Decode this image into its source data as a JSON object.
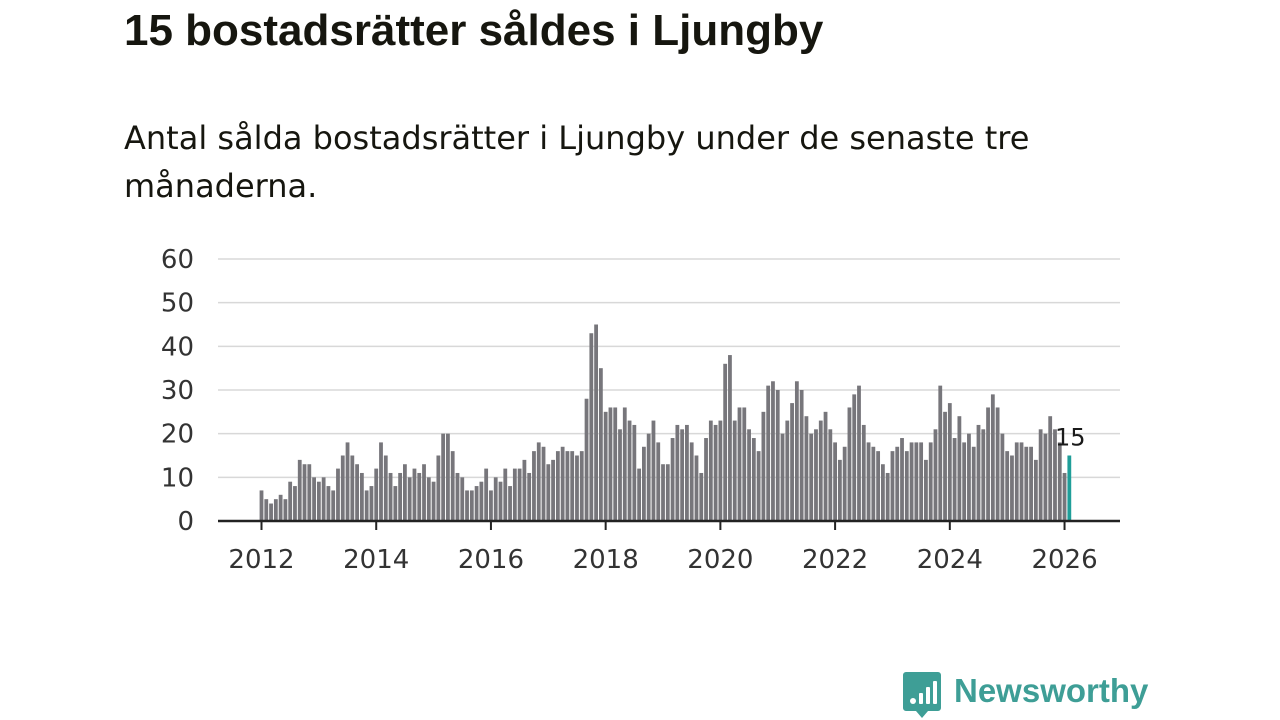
{
  "header": {
    "title": "15 bostadsrätter såldes i Ljungby",
    "subtitle": "Antal sålda bostadsrätter i Ljungby under de senaste tre månaderna."
  },
  "brand": {
    "name": "Newsworthy"
  },
  "colors": {
    "bar": "#77767b",
    "highlight": "#1f9e99",
    "grid": "#d8d8d8",
    "axis": "#222222",
    "brand": "#3e9e96"
  },
  "chart_data": {
    "type": "bar",
    "title": "15 bostadsrätter såldes i Ljungby",
    "subtitle": "Antal sålda bostadsrätter i Ljungby under de senaste tre månaderna.",
    "xlabel": "",
    "ylabel": "",
    "ylim": [
      0,
      60
    ],
    "y_ticks": [
      "0",
      "10",
      "20",
      "30",
      "40",
      "50",
      "60"
    ],
    "x_ticks": [
      "2012",
      "2014",
      "2016",
      "2018",
      "2020",
      "2022",
      "2024",
      "2026"
    ],
    "start": "2012-01",
    "grid": true,
    "annotation": {
      "label": "15",
      "category": "2026-02"
    },
    "categories": [
      "2012-01",
      "2012-02",
      "2012-03",
      "2012-04",
      "2012-05",
      "2012-06",
      "2012-07",
      "2012-08",
      "2012-09",
      "2012-10",
      "2012-11",
      "2012-12",
      "2013-01",
      "2013-02",
      "2013-03",
      "2013-04",
      "2013-05",
      "2013-06",
      "2013-07",
      "2013-08",
      "2013-09",
      "2013-10",
      "2013-11",
      "2013-12",
      "2014-01",
      "2014-02",
      "2014-03",
      "2014-04",
      "2014-05",
      "2014-06",
      "2014-07",
      "2014-08",
      "2014-09",
      "2014-10",
      "2014-11",
      "2014-12",
      "2015-01",
      "2015-02",
      "2015-03",
      "2015-04",
      "2015-05",
      "2015-06",
      "2015-07",
      "2015-08",
      "2015-09",
      "2015-10",
      "2015-11",
      "2015-12",
      "2016-01",
      "2016-02",
      "2016-03",
      "2016-04",
      "2016-05",
      "2016-06",
      "2016-07",
      "2016-08",
      "2016-09",
      "2016-10",
      "2016-11",
      "2016-12",
      "2017-01",
      "2017-02",
      "2017-03",
      "2017-04",
      "2017-05",
      "2017-06",
      "2017-07",
      "2017-08",
      "2017-09",
      "2017-10",
      "2017-11",
      "2017-12",
      "2018-01",
      "2018-02",
      "2018-03",
      "2018-04",
      "2018-05",
      "2018-06",
      "2018-07",
      "2018-08",
      "2018-09",
      "2018-10",
      "2018-11",
      "2018-12",
      "2019-01",
      "2019-02",
      "2019-03",
      "2019-04",
      "2019-05",
      "2019-06",
      "2019-07",
      "2019-08",
      "2019-09",
      "2019-10",
      "2019-11",
      "2019-12",
      "2020-01",
      "2020-02",
      "2020-03",
      "2020-04",
      "2020-05",
      "2020-06",
      "2020-07",
      "2020-08",
      "2020-09",
      "2020-10",
      "2020-11",
      "2020-12",
      "2021-01",
      "2021-02",
      "2021-03",
      "2021-04",
      "2021-05",
      "2021-06",
      "2021-07",
      "2021-08",
      "2021-09",
      "2021-10",
      "2021-11",
      "2021-12",
      "2022-01",
      "2022-02",
      "2022-03",
      "2022-04",
      "2022-05",
      "2022-06",
      "2022-07",
      "2022-08",
      "2022-09",
      "2022-10",
      "2022-11",
      "2022-12",
      "2023-01",
      "2023-02",
      "2023-03",
      "2023-04",
      "2023-05",
      "2023-06",
      "2023-07",
      "2023-08",
      "2023-09",
      "2023-10",
      "2023-11",
      "2023-12",
      "2024-01",
      "2024-02",
      "2024-03",
      "2024-04",
      "2024-05",
      "2024-06",
      "2024-07",
      "2024-08",
      "2024-09",
      "2024-10",
      "2024-11",
      "2024-12",
      "2025-01",
      "2025-02",
      "2025-03",
      "2025-04",
      "2025-05",
      "2025-06",
      "2025-07",
      "2025-08",
      "2025-09",
      "2025-10",
      "2025-11",
      "2025-12",
      "2026-01",
      "2026-02"
    ],
    "series": [
      {
        "name": "Antal sålda bostadsrätter",
        "values": [
          7,
          5,
          4,
          5,
          6,
          5,
          9,
          8,
          14,
          13,
          13,
          10,
          9,
          10,
          8,
          7,
          12,
          15,
          18,
          15,
          13,
          11,
          7,
          8,
          12,
          18,
          15,
          11,
          8,
          11,
          13,
          10,
          12,
          11,
          13,
          10,
          9,
          15,
          20,
          20,
          16,
          11,
          10,
          7,
          7,
          8,
          9,
          12,
          7,
          10,
          9,
          12,
          8,
          12,
          12,
          14,
          11,
          16,
          18,
          17,
          13,
          14,
          16,
          17,
          16,
          16,
          15,
          16,
          28,
          43,
          45,
          35,
          25,
          26,
          26,
          21,
          26,
          23,
          22,
          12,
          17,
          20,
          23,
          18,
          13,
          13,
          19,
          22,
          21,
          22,
          18,
          15,
          11,
          19,
          23,
          22,
          23,
          36,
          38,
          23,
          26,
          26,
          21,
          19,
          16,
          25,
          31,
          32,
          30,
          20,
          23,
          27,
          32,
          30,
          24,
          20,
          21,
          23,
          25,
          21,
          18,
          14,
          17,
          26,
          29,
          31,
          22,
          18,
          17,
          16,
          13,
          11,
          16,
          17,
          19,
          16,
          18,
          18,
          18,
          14,
          18,
          21,
          31,
          25,
          27,
          19,
          24,
          18,
          20,
          17,
          22,
          21,
          26,
          29,
          26,
          20,
          16,
          15,
          18,
          18,
          17,
          17,
          14,
          21,
          20,
          24,
          21,
          18,
          11,
          15
        ]
      }
    ]
  }
}
